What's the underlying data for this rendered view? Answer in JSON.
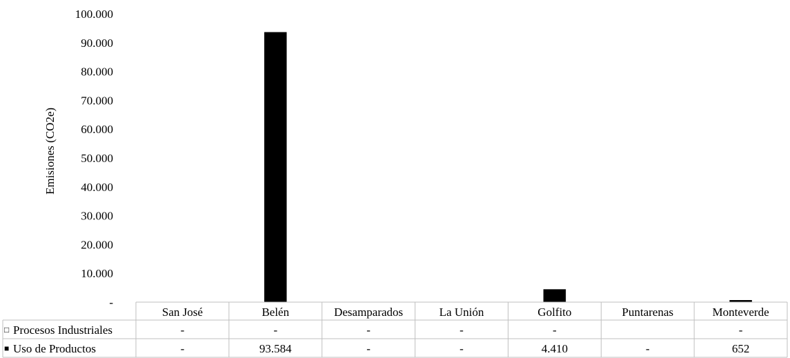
{
  "chart_data": {
    "type": "bar",
    "ylabel": "Emisiones (CO2e)",
    "ylim": [
      0,
      100000
    ],
    "yticks": [
      "-",
      "10.000",
      "20.000",
      "30.000",
      "40.000",
      "50.000",
      "60.000",
      "70.000",
      "80.000",
      "90.000",
      "100.000"
    ],
    "categories": [
      "San José",
      "Belén",
      "Desamparados",
      "La Unión",
      "Golfito",
      "Puntarenas",
      "Monteverde"
    ],
    "grid": false,
    "legend": "data-table",
    "series": [
      {
        "name": "Procesos Industriales",
        "marker": "□",
        "color": "#ffffff",
        "values": [
          0,
          0,
          0,
          0,
          0,
          null,
          0
        ],
        "labels": [
          "-",
          "-",
          "-",
          "-",
          "-",
          "",
          "-"
        ]
      },
      {
        "name": "Uso de Productos",
        "marker": "■",
        "color": "#000000",
        "values": [
          0,
          93584,
          0,
          0,
          4410,
          0,
          652
        ],
        "labels": [
          "-",
          "93.584",
          "-",
          "-",
          "4.410",
          "-",
          "652"
        ]
      }
    ]
  }
}
